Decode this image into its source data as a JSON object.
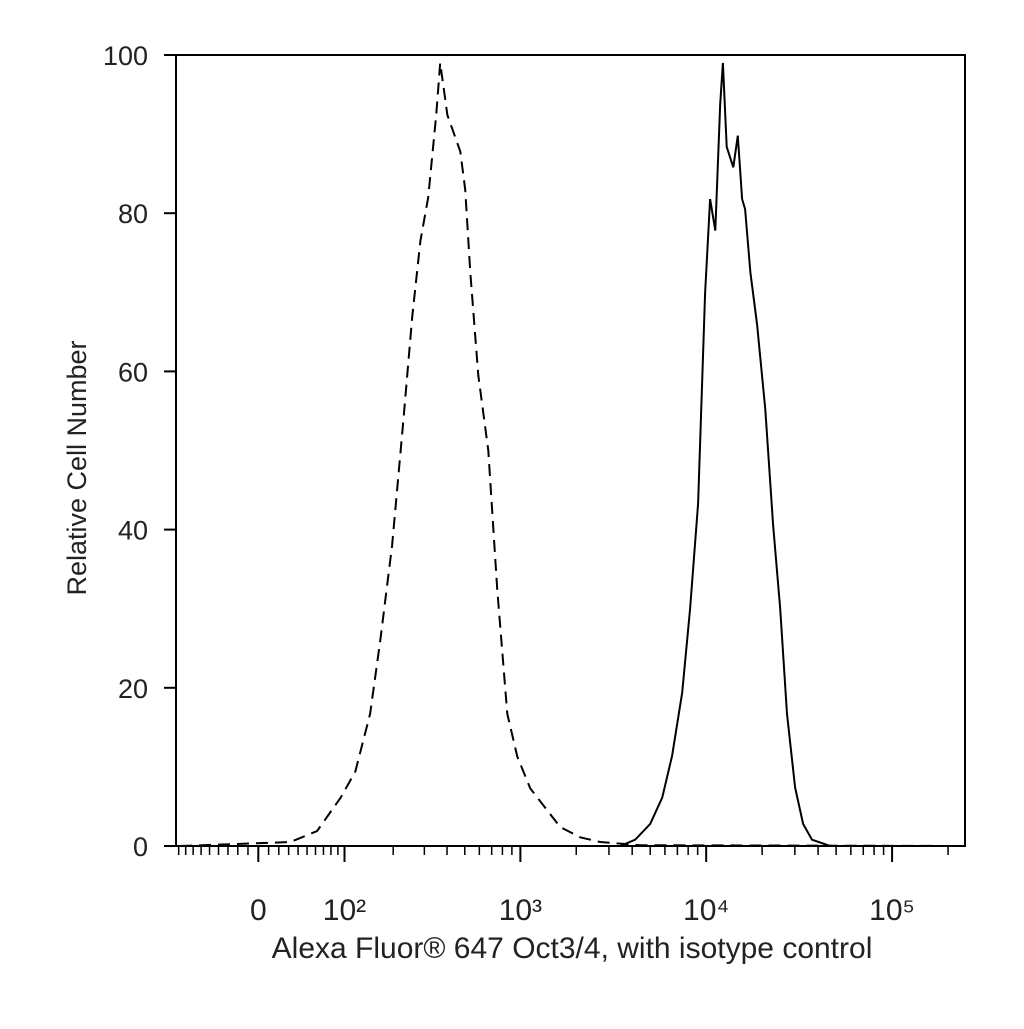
{
  "chart_data": {
    "type": "line",
    "xlabel": "Alexa Fluor® 647 Oct3/4, with isotype control",
    "ylabel": "Relative Cell Number",
    "xscale": "biexponential",
    "xlim": [
      -94,
      246700
    ],
    "ylim": [
      0,
      100
    ],
    "xticks": [
      0,
      {
        "value": 100,
        "label": "10²"
      },
      {
        "value": 1000,
        "label": "10³"
      },
      {
        "value": 10000,
        "label": "10⁴"
      },
      {
        "value": 100000,
        "label": "10⁵"
      }
    ],
    "xminorticks": [
      -90,
      -80,
      -70,
      -60,
      -50,
      -40,
      -30,
      -20,
      -10,
      10,
      20,
      30,
      40,
      50,
      60,
      70,
      80,
      90,
      200,
      300,
      400,
      500,
      600,
      700,
      800,
      900,
      2000,
      3000,
      4000,
      5000,
      6000,
      7000,
      8000,
      9000,
      20000,
      30000,
      40000,
      50000,
      60000,
      70000,
      80000,
      90000,
      200000
    ],
    "yticks": [
      0,
      20,
      40,
      60,
      80,
      100
    ],
    "series": [
      {
        "color": "#000000",
        "linestyle": "dashed",
        "x": [
          -88,
          32,
          62,
          94,
          118,
          146,
          168,
          197,
          229,
          257,
          285,
          315,
          349,
          367,
          402,
          473,
          503,
          536,
          592,
          671,
          750,
          850,
          962,
          1130,
          1365,
          1640,
          2100,
          2690,
          4410,
          230000
        ],
        "values": [
          0,
          0.5,
          1.9,
          6.1,
          9.4,
          16.7,
          26,
          38,
          54,
          67,
          76.5,
          82,
          92.4,
          99,
          92.4,
          87.8,
          83,
          72.5,
          59.5,
          50,
          32.5,
          16.7,
          11.3,
          7.3,
          4.8,
          2.4,
          1.1,
          0.5,
          0.1,
          0
        ]
      },
      {
        "color": "#000000",
        "linestyle": "solid",
        "x": [
          -88,
          3450,
          4150,
          5000,
          5800,
          6560,
          7430,
          8200,
          9050,
          9870,
          10500,
          11200,
          11900,
          12300,
          12900,
          14000,
          14800,
          15600,
          16200,
          17300,
          18800,
          20800,
          22900,
          25000,
          27200,
          30100,
          33200,
          37100,
          46400,
          230000
        ],
        "values": [
          0,
          0,
          0.8,
          2.8,
          6.1,
          11.4,
          19.4,
          30,
          43.3,
          69.9,
          81.8,
          77.8,
          93.8,
          99,
          88.4,
          85.8,
          89.8,
          81.8,
          80.5,
          72.5,
          65.9,
          55.2,
          40.6,
          30,
          16.7,
          7.4,
          2.8,
          0.8,
          0,
          0
        ]
      }
    ]
  }
}
